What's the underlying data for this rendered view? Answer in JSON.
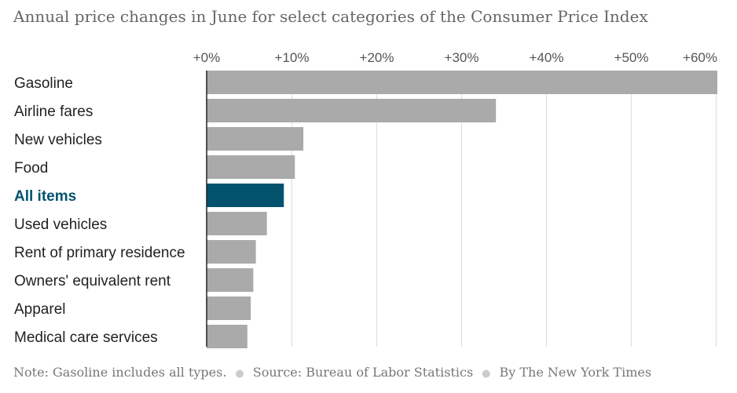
{
  "chart_data": {
    "type": "bar",
    "orientation": "horizontal",
    "title": "Annual price changes in June for select categories of the Consumer Price Index",
    "categories": [
      "Gasoline",
      "Airline fares",
      "New vehicles",
      "Food",
      "All items",
      "Used vehicles",
      "Rent of primary residence",
      "Owners' equivalent rent",
      "Apparel",
      "Medical care services"
    ],
    "values": [
      60.2,
      34.1,
      11.4,
      10.4,
      9.1,
      7.1,
      5.8,
      5.5,
      5.2,
      4.8
    ],
    "highlight": "All items",
    "xlim": [
      0,
      60.2
    ],
    "xticks": [
      0,
      10,
      20,
      30,
      40,
      50,
      60
    ],
    "xtick_labels": [
      "+0%",
      "+10%",
      "+20%",
      "+30%",
      "+40%",
      "+50%",
      "+60%"
    ],
    "xlabel": "",
    "ylabel": "",
    "grid": true,
    "colors": {
      "bar": "#aaaaaa",
      "highlight": "#03536e",
      "grid": "#dddddd",
      "axis": "#222222"
    }
  },
  "footer": {
    "note": "Note: Gasoline includes all types.",
    "source": "Source: Bureau of Labor Statistics",
    "credit": "By The New York Times"
  }
}
